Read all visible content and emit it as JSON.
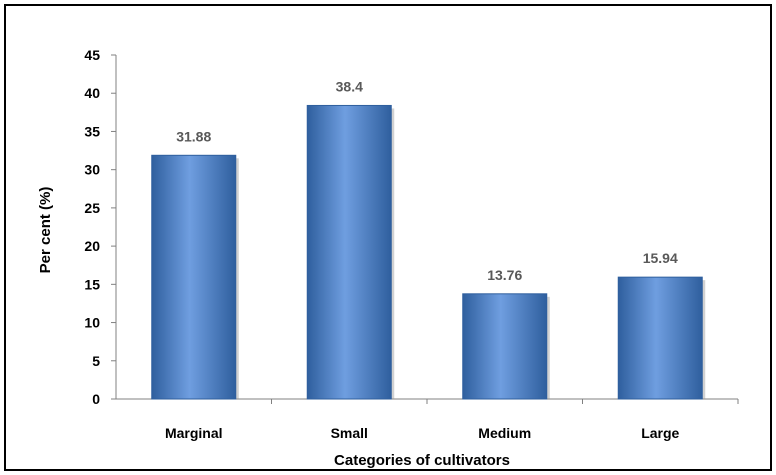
{
  "chart_data": {
    "type": "bar",
    "categories": [
      "Marginal",
      "Small",
      "Medium",
      "Large"
    ],
    "values": [
      31.88,
      38.4,
      13.76,
      15.94
    ],
    "value_labels": [
      "31.88",
      "38.4",
      "13.76",
      "15.94"
    ],
    "title": "",
    "xlabel": "Categories of cultivators",
    "ylabel": "Per cent (%)",
    "ylim": [
      0,
      45
    ],
    "yticks": [
      0,
      5,
      10,
      15,
      20,
      25,
      30,
      35,
      40,
      45
    ],
    "grid": false,
    "legend": "none",
    "bar_color": "#4a7fcb",
    "bar_color_light": "#6f9ee0",
    "bar_color_dark": "#2f5f9e"
  }
}
